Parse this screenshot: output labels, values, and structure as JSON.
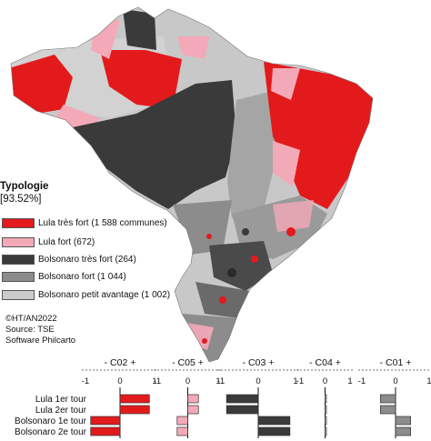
{
  "legend": {
    "title": "Typologie",
    "percent": "[93.52%]",
    "items": [
      {
        "label": "Lula très fort (1 588 communes)",
        "color": "#e31a1c"
      },
      {
        "label": "Lula fort (672)",
        "color": "#f4a9b8"
      },
      {
        "label": "Bolsonaro très fort (264)",
        "color": "#3a3a3a"
      },
      {
        "label": "Bolsonaro fort (1 044)",
        "color": "#8c8c8c"
      },
      {
        "label": "Bolsonaro petit avantage (1 002)",
        "color": "#cccccc"
      }
    ]
  },
  "credits": {
    "copyright": "©HT/AN2022",
    "source": "Source: TSE",
    "software": "Software Philcarto"
  },
  "chart_data": {
    "type": "bar",
    "categories": [
      "Lula 1er tour",
      "Lula 2er tour",
      "Bolsonaro 1e tour",
      "Bolsonaro 2e tour"
    ],
    "xlim": [
      -1,
      1
    ],
    "tick_labels": [
      "-1",
      "0",
      "1"
    ],
    "panels": [
      {
        "title": "- C02 +",
        "color": "#e31a1c",
        "values": [
          0.85,
          0.85,
          -0.85,
          -0.85
        ]
      },
      {
        "title": "- C05 +",
        "color": "#f4a9b8",
        "values": [
          0.35,
          0.35,
          -0.35,
          -0.35
        ]
      },
      {
        "title": "- C03 +",
        "color": "#3a3a3a",
        "values": [
          -0.85,
          -0.85,
          0.85,
          0.85
        ]
      },
      {
        "title": "- C04 +",
        "color": "#cccccc",
        "values": [
          0.05,
          0.05,
          0.05,
          0.05
        ]
      },
      {
        "title": "- C01 +",
        "color": "#8c8c8c",
        "values": [
          -0.45,
          -0.45,
          0.45,
          0.45
        ]
      }
    ]
  }
}
